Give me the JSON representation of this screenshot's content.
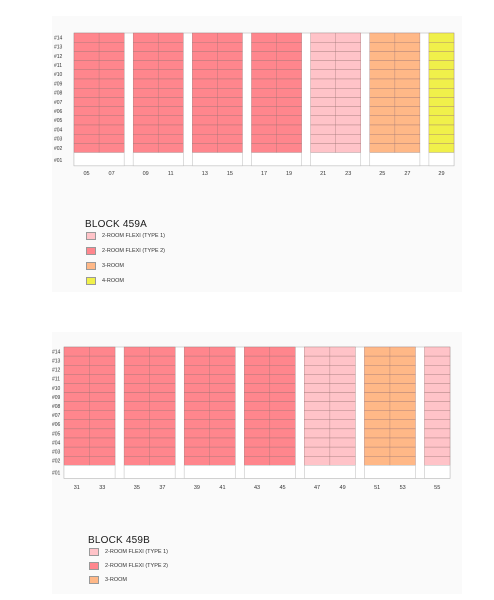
{
  "colors": {
    "flexi1": "#ffc3c8",
    "flexi2": "#ff868d",
    "room3": "#ffb887",
    "room4": "#f0f04a",
    "empty": "#ffffff",
    "grid": "#9a7373",
    "outline": "#bbbbbb"
  },
  "floors": [
    "#14",
    "#13",
    "#12",
    "#11",
    "#10",
    "#09",
    "#08",
    "#07",
    "#06",
    "#05",
    "#04",
    "#03",
    "#02",
    "#01"
  ],
  "blocks": [
    {
      "title": "BLOCK 459A",
      "columns": [
        {
          "type": "flexi2",
          "units": [
            "05",
            "07"
          ]
        },
        {
          "type": "flexi2",
          "units": [
            "09",
            "11"
          ]
        },
        {
          "type": "flexi2",
          "units": [
            "13",
            "15"
          ]
        },
        {
          "type": "flexi2",
          "units": [
            "17",
            "19"
          ]
        },
        {
          "type": "flexi1",
          "units": [
            "21",
            "23"
          ]
        },
        {
          "type": "room3",
          "units": [
            "25",
            "27"
          ]
        },
        {
          "type": "room4",
          "units": [
            "29"
          ]
        }
      ],
      "legend": [
        {
          "label": "2-ROOM FLEXI (TYPE 1)",
          "color": "flexi1"
        },
        {
          "label": "2-ROOM FLEXI (TYPE 2)",
          "color": "flexi2"
        },
        {
          "label": "3-ROOM",
          "color": "room3"
        },
        {
          "label": "4-ROOM",
          "color": "room4"
        }
      ]
    },
    {
      "title": "BLOCK 459B",
      "columns": [
        {
          "type": "flexi2",
          "units": [
            "31",
            "33"
          ]
        },
        {
          "type": "flexi2",
          "units": [
            "35",
            "37"
          ]
        },
        {
          "type": "flexi2",
          "units": [
            "39",
            "41"
          ]
        },
        {
          "type": "flexi2",
          "units": [
            "43",
            "45"
          ]
        },
        {
          "type": "flexi1",
          "units": [
            "47",
            "49"
          ]
        },
        {
          "type": "room3",
          "units": [
            "51",
            "53"
          ]
        },
        {
          "type": "flexi1",
          "units": [
            "55"
          ]
        }
      ],
      "legend": [
        {
          "label": "2-ROOM FLEXI (TYPE 1)",
          "color": "flexi1"
        },
        {
          "label": "2-ROOM FLEXI (TYPE 2)",
          "color": "flexi2"
        },
        {
          "label": "3-ROOM",
          "color": "room3"
        }
      ]
    }
  ]
}
